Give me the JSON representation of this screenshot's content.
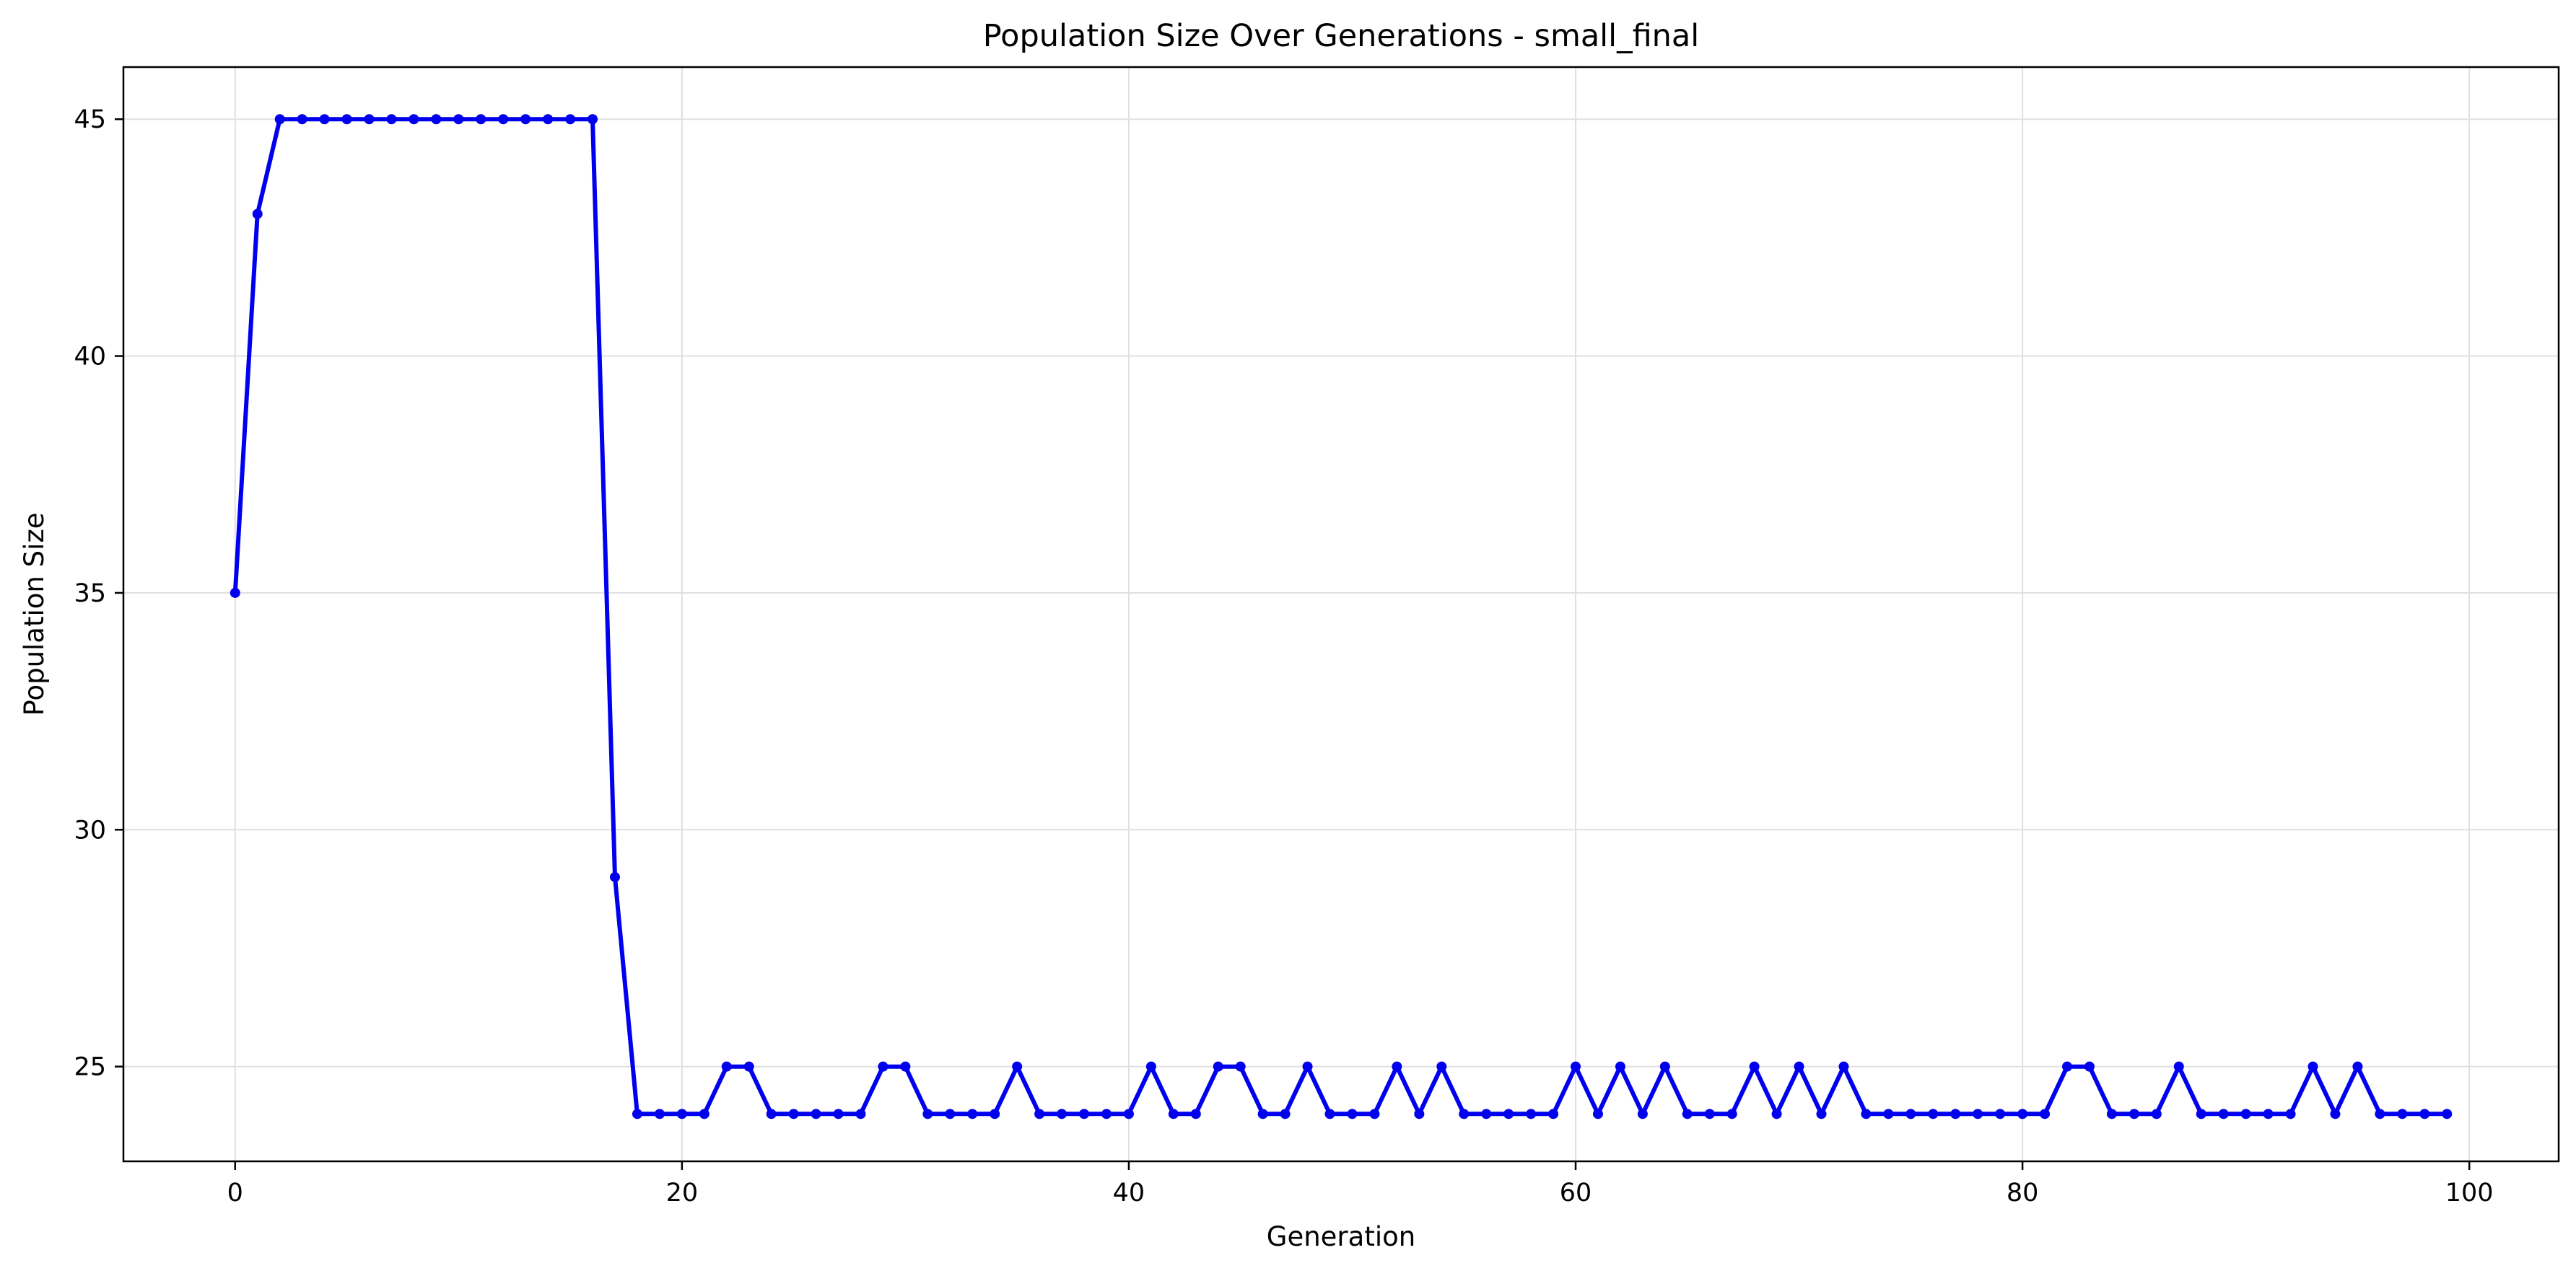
{
  "chart_data": {
    "type": "line",
    "title": "Population Size Over Generations - small_final",
    "xlabel": "Generation",
    "ylabel": "Population Size",
    "xlim": [
      -5,
      104
    ],
    "ylim": [
      23,
      46.1
    ],
    "xticks": [
      0,
      20,
      40,
      60,
      80,
      100
    ],
    "yticks": [
      25,
      30,
      35,
      40,
      45
    ],
    "grid": true,
    "legend": "none",
    "series": [
      {
        "color": "#0000ee",
        "marker": "circle",
        "x": [
          0,
          1,
          2,
          3,
          4,
          5,
          6,
          7,
          8,
          9,
          10,
          11,
          12,
          13,
          14,
          15,
          16,
          17,
          18,
          19,
          20,
          21,
          22,
          23,
          24,
          25,
          26,
          27,
          28,
          29,
          30,
          31,
          32,
          33,
          34,
          35,
          36,
          37,
          38,
          39,
          40,
          41,
          42,
          43,
          44,
          45,
          46,
          47,
          48,
          49,
          50,
          51,
          52,
          53,
          54,
          55,
          56,
          57,
          58,
          59,
          60,
          61,
          62,
          63,
          64,
          65,
          66,
          67,
          68,
          69,
          70,
          71,
          72,
          73,
          74,
          75,
          76,
          77,
          78,
          79,
          80,
          81,
          82,
          83,
          84,
          85,
          86,
          87,
          88,
          89,
          90,
          91,
          92,
          93,
          94,
          95,
          96,
          97,
          98,
          99
        ],
        "y": [
          35,
          43,
          45,
          45,
          45,
          45,
          45,
          45,
          45,
          45,
          45,
          45,
          45,
          45,
          45,
          45,
          45,
          29,
          24,
          24,
          24,
          24,
          25,
          25,
          24,
          24,
          24,
          24,
          24,
          25,
          25,
          24,
          24,
          24,
          24,
          25,
          24,
          24,
          24,
          24,
          24,
          25,
          24,
          24,
          25,
          25,
          24,
          24,
          25,
          24,
          24,
          24,
          25,
          24,
          25,
          24,
          24,
          24,
          24,
          24,
          25,
          24,
          25,
          24,
          25,
          24,
          24,
          24,
          25,
          24,
          25,
          24,
          25,
          24,
          24,
          24,
          24,
          24,
          24,
          24,
          24,
          24,
          25,
          25,
          24,
          24,
          24,
          25,
          24,
          24,
          24,
          24,
          24,
          25,
          24,
          25,
          24,
          24,
          24,
          24
        ]
      }
    ]
  }
}
